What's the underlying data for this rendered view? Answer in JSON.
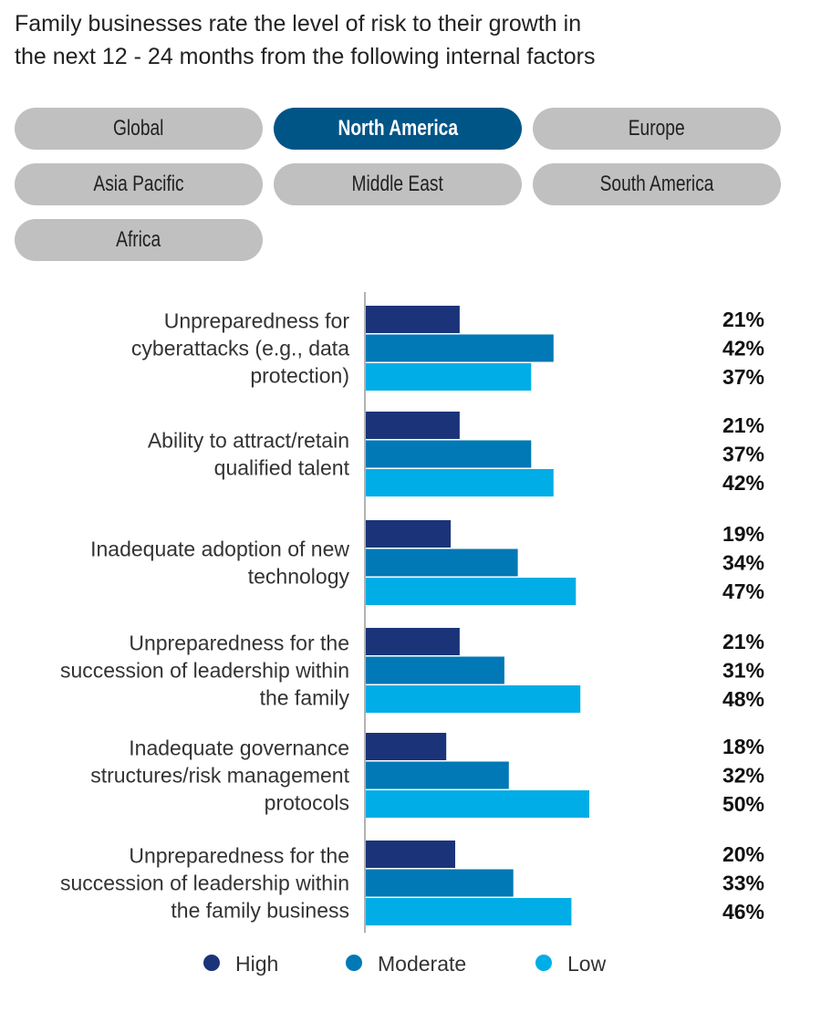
{
  "title_lines": [
    "Family businesses rate the level of risk to their growth in",
    "the next 12 - 24 months from the following internal factors"
  ],
  "region_buttons": [
    {
      "label": "Global",
      "selected": false
    },
    {
      "label": "North America",
      "selected": true
    },
    {
      "label": "Europe",
      "selected": false
    },
    {
      "label": "Asia Pacific",
      "selected": false
    },
    {
      "label": "Middle East",
      "selected": false
    },
    {
      "label": "South America",
      "selected": false
    },
    {
      "label": "Africa",
      "selected": false
    }
  ],
  "colors": {
    "High": "#1b3479",
    "Moderate": "#0079b6",
    "Low": "#00ade6",
    "selected_button": "#005587",
    "button": "#c0c0c0"
  },
  "chart_data": {
    "type": "bar",
    "orientation": "horizontal",
    "categories": [
      [
        "Unpreparedness for",
        "cyberattacks (e.g., data",
        "protection)"
      ],
      [
        "Ability to attract/retain",
        "qualified talent"
      ],
      [
        "Inadequate adoption of new",
        "technology"
      ],
      [
        "Unpreparedness for the",
        "succession of leadership within",
        "the family"
      ],
      [
        "Inadequate governance",
        "structures/risk management",
        "protocols"
      ],
      [
        "Unpreparedness for the",
        "succession of leadership within",
        "the family business"
      ]
    ],
    "series": [
      {
        "name": "High",
        "values": [
          21,
          21,
          19,
          21,
          18,
          20
        ]
      },
      {
        "name": "Moderate",
        "values": [
          42,
          37,
          34,
          31,
          32,
          33
        ]
      },
      {
        "name": "Low",
        "values": [
          37,
          42,
          47,
          48,
          50,
          46
        ]
      }
    ],
    "value_suffix": "%",
    "legend": "bottom",
    "grid": false
  }
}
